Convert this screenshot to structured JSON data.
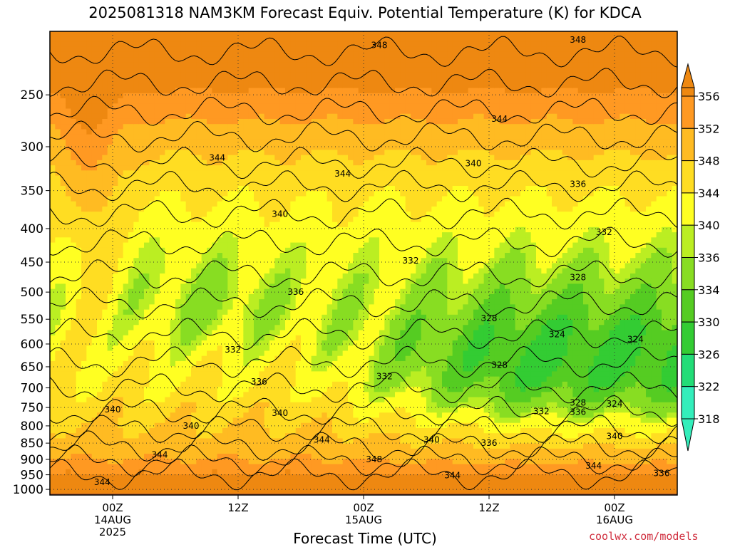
{
  "chart_data": {
    "type": "heatmap",
    "title": "2025081318 NAM3KM Forecast Equiv. Potential Temperature (K) for KDCA",
    "xlabel": "Forecast Time (UTC)",
    "ylabel": "",
    "y_scale": "log",
    "y_reversed": true,
    "ylim": [
      1020,
      200
    ],
    "y_ticks": [
      250,
      300,
      350,
      400,
      450,
      500,
      550,
      600,
      650,
      700,
      750,
      800,
      850,
      900,
      950,
      1000
    ],
    "x_ticks": [
      {
        "label": "00Z",
        "sub1": "14AUG",
        "sub2": "2025"
      },
      {
        "label": "12Z",
        "sub1": "",
        "sub2": ""
      },
      {
        "label": "00Z",
        "sub1": "15AUG",
        "sub2": ""
      },
      {
        "label": "12Z",
        "sub1": "",
        "sub2": ""
      },
      {
        "label": "00Z",
        "sub1": "16AUG",
        "sub2": ""
      }
    ],
    "x_tick_hours": [
      6,
      18,
      30,
      42,
      54
    ],
    "xlim_hours": [
      0,
      60
    ],
    "grid": true,
    "colorbar": {
      "levels": [
        318,
        322,
        326,
        330,
        334,
        336,
        340,
        344,
        348,
        352,
        356
      ],
      "labels": [
        "356",
        "352",
        "348",
        "344",
        "340",
        "336",
        "334",
        "330",
        "326",
        "322",
        "318"
      ],
      "colors": [
        "#33eebb",
        "#22dd77",
        "#33cc33",
        "#55cc22",
        "#88dd22",
        "#bbee22",
        "#ffff22",
        "#ffdd22",
        "#ffbb22",
        "#ff9922",
        "#ee8811"
      ]
    },
    "contour_labels": [
      {
        "text": "348",
        "hour": 31.5,
        "p": 210
      },
      {
        "text": "348",
        "hour": 50.5,
        "p": 206
      },
      {
        "text": "344",
        "hour": 43,
        "p": 272
      },
      {
        "text": "344",
        "hour": 16,
        "p": 312
      },
      {
        "text": "344",
        "hour": 28,
        "p": 330
      },
      {
        "text": "340",
        "hour": 40.5,
        "p": 318
      },
      {
        "text": "336",
        "hour": 50.5,
        "p": 342
      },
      {
        "text": "340",
        "hour": 22,
        "p": 380
      },
      {
        "text": "332",
        "hour": 53,
        "p": 405
      },
      {
        "text": "332",
        "hour": 34.5,
        "p": 448
      },
      {
        "text": "328",
        "hour": 50.5,
        "p": 475
      },
      {
        "text": "336",
        "hour": 23.5,
        "p": 500
      },
      {
        "text": "328",
        "hour": 42,
        "p": 548
      },
      {
        "text": "324",
        "hour": 48.5,
        "p": 580
      },
      {
        "text": "324",
        "hour": 56,
        "p": 590
      },
      {
        "text": "332",
        "hour": 17.5,
        "p": 612
      },
      {
        "text": "328",
        "hour": 43,
        "p": 646
      },
      {
        "text": "336",
        "hour": 20,
        "p": 685
      },
      {
        "text": "332",
        "hour": 32,
        "p": 672
      },
      {
        "text": "340",
        "hour": 6,
        "p": 755
      },
      {
        "text": "340",
        "hour": 22,
        "p": 765
      },
      {
        "text": "340",
        "hour": 13.5,
        "p": 800
      },
      {
        "text": "328",
        "hour": 50.5,
        "p": 738
      },
      {
        "text": "332",
        "hour": 47,
        "p": 760
      },
      {
        "text": "336",
        "hour": 50.5,
        "p": 762
      },
      {
        "text": "324",
        "hour": 54,
        "p": 740
      },
      {
        "text": "344",
        "hour": 26,
        "p": 840
      },
      {
        "text": "340",
        "hour": 36.5,
        "p": 840
      },
      {
        "text": "336",
        "hour": 42,
        "p": 850
      },
      {
        "text": "340",
        "hour": 54,
        "p": 830
      },
      {
        "text": "344",
        "hour": 10.5,
        "p": 885
      },
      {
        "text": "348",
        "hour": 31,
        "p": 900
      },
      {
        "text": "344",
        "hour": 52,
        "p": 920
      },
      {
        "text": "344",
        "hour": 38.5,
        "p": 952
      },
      {
        "text": "336",
        "hour": 58.5,
        "p": 945
      },
      {
        "text": "344",
        "hour": 5,
        "p": 975
      }
    ],
    "fields": {
      "surface_color": "#a0522d"
    }
  },
  "credit": "coolwx.com/models"
}
